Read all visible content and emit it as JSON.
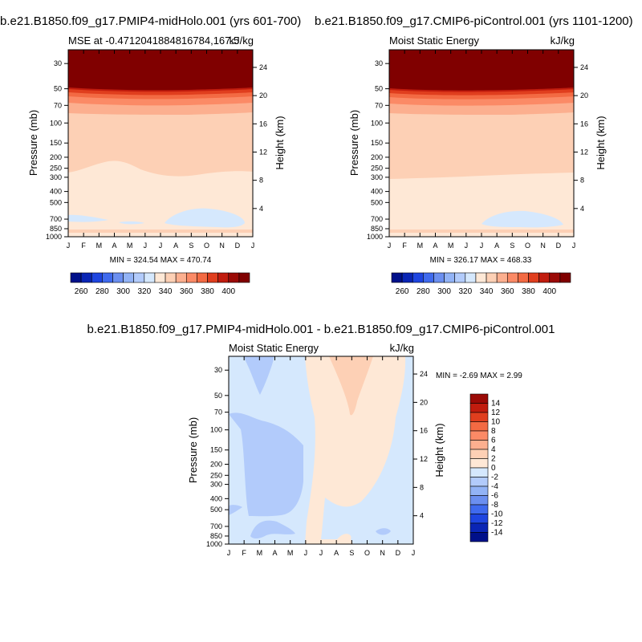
{
  "chart_data": [
    {
      "type": "heatmap",
      "title": "b.e21.B1850.f09_g17.PMIP4-midHolo.001 (yrs 601-700)",
      "subtitle_left": "MSE at -0.4712041884816784,167.5",
      "subtitle_right": "kJ/kg",
      "ylabel": "Pressure (mb)",
      "ylabel_right": "Height (km)",
      "x_ticks": [
        "J",
        "F",
        "M",
        "A",
        "M",
        "J",
        "J",
        "A",
        "S",
        "O",
        "N",
        "D",
        "J"
      ],
      "pressure_ticks": [
        "30",
        "50",
        "70",
        "100",
        "150",
        "200",
        "250",
        "300",
        "400",
        "500",
        "700",
        "850",
        "1000"
      ],
      "height_ticks": [
        "4",
        "8",
        "12",
        "16",
        "20",
        "24"
      ],
      "stats": "MIN = 324.54 MAX = 470.74",
      "color_levels": [
        260,
        270,
        280,
        290,
        300,
        310,
        320,
        330,
        340,
        350,
        360,
        370,
        380,
        390,
        400
      ],
      "colorbar_labels": [
        "260",
        "280",
        "300",
        "320",
        "340",
        "360",
        "380",
        "400"
      ]
    },
    {
      "type": "heatmap",
      "title": "b.e21.B1850.f09_g17.CMIP6-piControl.001 (yrs 1101-1200)",
      "subtitle_left": "Moist Static Energy",
      "subtitle_right": "kJ/kg",
      "ylabel": "Pressure (mb)",
      "ylabel_right": "Height (km)",
      "x_ticks": [
        "J",
        "F",
        "M",
        "A",
        "M",
        "J",
        "J",
        "A",
        "S",
        "O",
        "N",
        "D",
        "J"
      ],
      "pressure_ticks": [
        "30",
        "50",
        "70",
        "100",
        "150",
        "200",
        "250",
        "300",
        "400",
        "500",
        "700",
        "850",
        "1000"
      ],
      "height_ticks": [
        "4",
        "8",
        "12",
        "16",
        "20",
        "24"
      ],
      "stats": "MIN = 326.17 MAX = 468.33",
      "color_levels": [
        260,
        270,
        280,
        290,
        300,
        310,
        320,
        330,
        340,
        350,
        360,
        370,
        380,
        390,
        400
      ],
      "colorbar_labels": [
        "260",
        "280",
        "300",
        "320",
        "340",
        "360",
        "380",
        "400"
      ]
    },
    {
      "type": "heatmap",
      "title": "b.e21.B1850.f09_g17.PMIP4-midHolo.001 - b.e21.B1850.f09_g17.CMIP6-piControl.001",
      "subtitle_left": "Moist Static Energy",
      "subtitle_right": "kJ/kg",
      "ylabel": "Pressure (mb)",
      "ylabel_right": "Height (km)",
      "x_ticks": [
        "J",
        "F",
        "M",
        "A",
        "M",
        "J",
        "J",
        "A",
        "S",
        "O",
        "N",
        "D",
        "J"
      ],
      "pressure_ticks": [
        "30",
        "50",
        "70",
        "100",
        "150",
        "200",
        "250",
        "300",
        "400",
        "500",
        "700",
        "850",
        "1000"
      ],
      "height_ticks": [
        "4",
        "8",
        "12",
        "16",
        "20",
        "24"
      ],
      "stats": "MIN =   -2.69 MAX =   2.99",
      "color_levels": [
        -14,
        -12,
        -10,
        -8,
        -6,
        -4,
        -2,
        0,
        2,
        4,
        6,
        8,
        10,
        12,
        14
      ],
      "colorbar_labels": [
        "14",
        "12",
        "10",
        "8",
        "6",
        "4",
        "2",
        "0",
        "-2",
        "-4",
        "-6",
        "-8",
        "-10",
        "-12",
        "-14"
      ]
    }
  ],
  "colors": {
    "red_scale": [
      "#fee8d6",
      "#fdd0b5",
      "#fcaf8f",
      "#fb8a66",
      "#f36a43",
      "#e03e1e",
      "#c11c0e",
      "#9b0a06",
      "#800000"
    ],
    "blue_scale": [
      "#d5e8fd",
      "#b2cbfb",
      "#92b3f6",
      "#6b8ff0",
      "#3f6aee",
      "#1e45e0",
      "#0a25b5",
      "#00108a"
    ],
    "diff_red": [
      "#fee8d6",
      "#fdd0b5",
      "#fcaf8f",
      "#fb8a66",
      "#f36a43",
      "#e03e1e",
      "#c11c0e",
      "#9b0a06"
    ],
    "diff_blue": [
      "#d5e8fd",
      "#b2cbfb",
      "#92b3f6",
      "#6b8ff0",
      "#3f6aee",
      "#1e45e0",
      "#0a25b5",
      "#00108a"
    ]
  }
}
